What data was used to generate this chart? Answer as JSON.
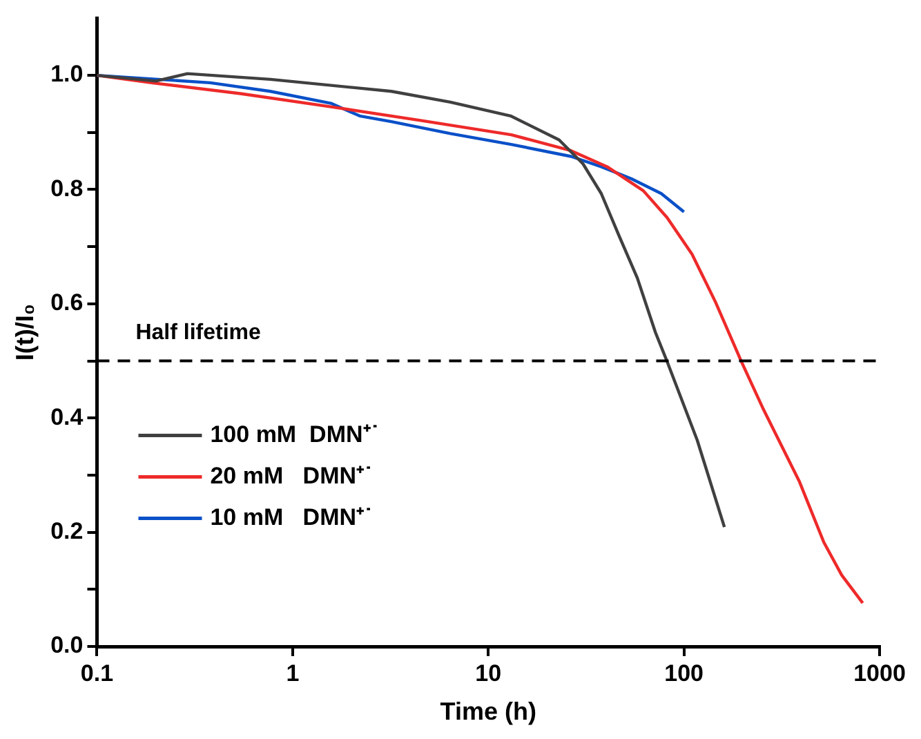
{
  "chart_data": {
    "type": "line",
    "xlabel": "Time (h)",
    "ylabel": "I(t)/I₀",
    "log": "x",
    "xlim": [
      0.1,
      1000
    ],
    "xticks": [
      {
        "value": 0.1,
        "label": "0.1"
      },
      1,
      10,
      100,
      1000
    ],
    "ylim": [
      0,
      1.1
    ],
    "yticks": [
      {
        "value": 0,
        "label": "0.0"
      },
      {
        "value": 0.1,
        "label": null
      },
      {
        "value": 0.2,
        "label": "0.2"
      },
      {
        "value": 0.3,
        "label": null
      },
      {
        "value": 0.4,
        "label": "0.4"
      },
      {
        "value": 0.5,
        "label": null
      },
      {
        "value": 0.6,
        "label": "0.6"
      },
      {
        "value": 0.7,
        "label": null
      },
      {
        "value": 0.8,
        "label": "0.8"
      },
      {
        "value": 0.9,
        "label": null
      },
      {
        "value": 1,
        "label": "1.0"
      }
    ],
    "grid": false,
    "legend": "left",
    "marker": "none",
    "line_style": "solid",
    "ref_lines": [
      {
        "axis": "y",
        "value": 0.5,
        "label": "Half lifetime",
        "color": "#000000",
        "line_style": "dashed"
      }
    ],
    "series": [
      {
        "name": "100 mM  DMN⁺˙",
        "color": "#404040",
        "x": [
          0.1,
          0.2,
          0.29,
          0.77,
          3.2,
          6.4,
          13,
          23,
          30.5,
          37.8,
          46.6,
          57.8,
          71.5,
          81.8,
          117,
          161
        ],
        "values": [
          1.0,
          0.99,
          1.003,
          0.993,
          0.972,
          0.953,
          0.929,
          0.887,
          0.845,
          0.793,
          0.719,
          0.645,
          0.55,
          0.5,
          0.361,
          0.209
        ]
      },
      {
        "name": "20 mM   DMN⁺˙",
        "color": "#ee2a2a",
        "x": [
          0.1,
          0.19,
          0.54,
          1.57,
          4.5,
          13.1,
          26.5,
          40.5,
          62,
          82,
          110,
          145,
          196,
          255,
          390,
          518,
          640,
          820
        ],
        "values": [
          1.0,
          0.987,
          0.968,
          0.945,
          0.921,
          0.896,
          0.868,
          0.84,
          0.798,
          0.751,
          0.687,
          0.603,
          0.5,
          0.415,
          0.288,
          0.183,
          0.125,
          0.076
        ]
      },
      {
        "name": "10 mM   DMN⁺˙",
        "color": "#0a50c8",
        "x": [
          0.1,
          0.38,
          0.77,
          1.57,
          2.2,
          3.2,
          6.4,
          13.1,
          26.5,
          37.8,
          53.8,
          76.6,
          100
        ],
        "values": [
          1.0,
          0.987,
          0.972,
          0.951,
          0.929,
          0.919,
          0.898,
          0.879,
          0.858,
          0.84,
          0.819,
          0.793,
          0.761
        ]
      }
    ]
  }
}
